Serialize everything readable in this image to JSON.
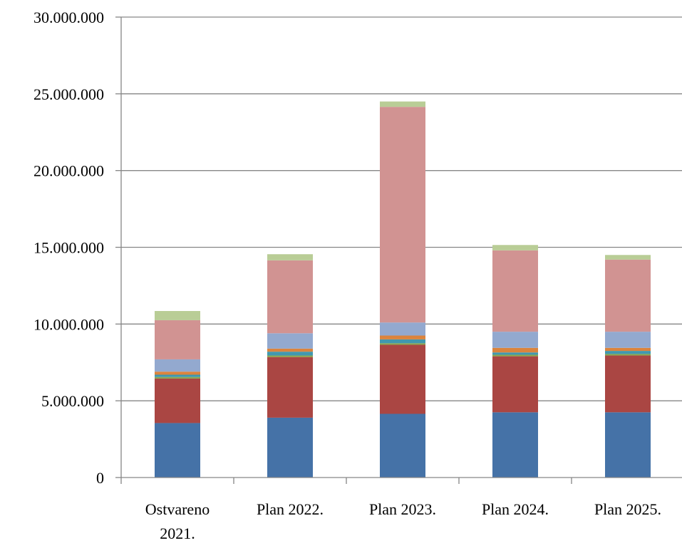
{
  "chart_data": {
    "type": "bar",
    "stacked": true,
    "title": "",
    "xlabel": "",
    "ylabel": "",
    "ylim": [
      0,
      30000000
    ],
    "yticks": [
      0,
      5000000,
      10000000,
      15000000,
      20000000,
      25000000,
      30000000
    ],
    "ytick_labels": [
      "0",
      "5.000.000",
      "10.000.000",
      "15.000.000",
      "20.000.000",
      "25.000.000",
      "30.000.000"
    ],
    "grid": true,
    "legend": "none",
    "categories": [
      [
        "Ostvareno",
        "2021."
      ],
      [
        "Plan 2022."
      ],
      [
        "Plan 2023."
      ],
      [
        "Plan 2024."
      ],
      [
        "Plan 2025."
      ]
    ],
    "series": [
      {
        "color": "#4572A7",
        "values": [
          3550000,
          3900000,
          4150000,
          4250000,
          4250000
        ]
      },
      {
        "color": "#AA4643",
        "values": [
          2900000,
          3950000,
          4500000,
          3650000,
          3700000
        ]
      },
      {
        "color": "#89A54E",
        "values": [
          100000,
          100000,
          100000,
          100000,
          100000
        ]
      },
      {
        "color": "#4198AF",
        "values": [
          150000,
          250000,
          250000,
          150000,
          200000
        ]
      },
      {
        "color": "#DB843D",
        "values": [
          200000,
          200000,
          250000,
          300000,
          200000
        ]
      },
      {
        "color": "#93A9CF",
        "values": [
          800000,
          1000000,
          850000,
          1050000,
          1050000
        ]
      },
      {
        "color": "#D19392",
        "values": [
          2550000,
          4750000,
          14050000,
          5300000,
          4700000
        ]
      },
      {
        "color": "#B9CD96",
        "values": [
          600000,
          400000,
          350000,
          350000,
          300000
        ]
      }
    ]
  }
}
